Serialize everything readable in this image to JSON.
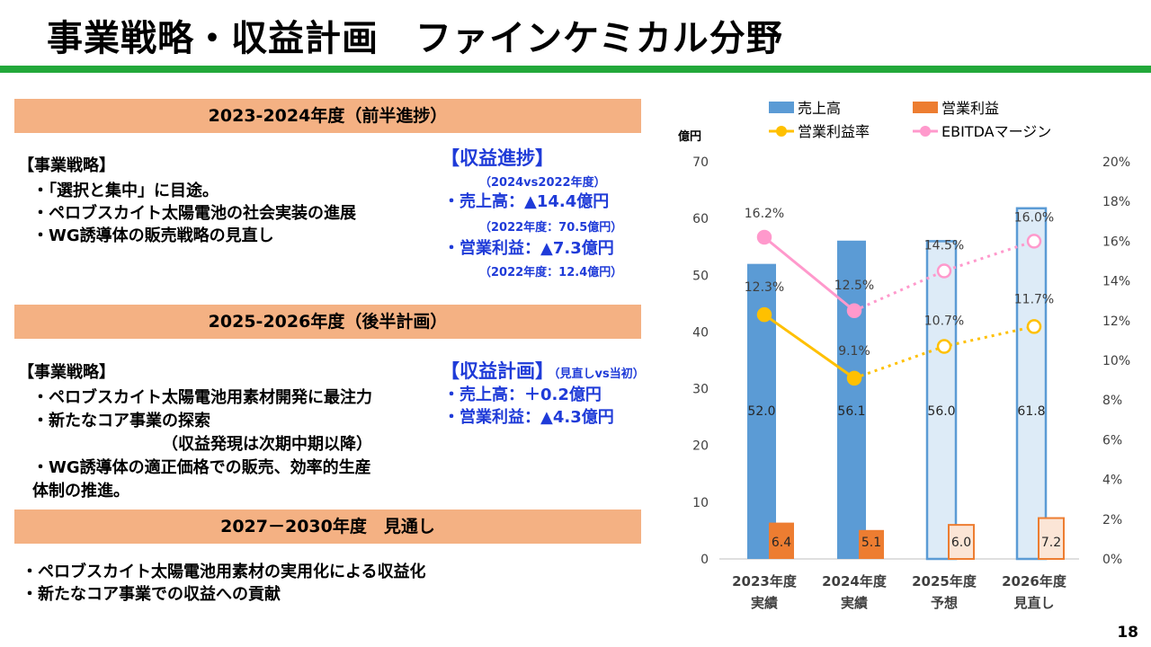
{
  "title": "事業戦略・収益計画　ファインケミカル分野",
  "page_number": "18",
  "sections": [
    {
      "header": "2023-2024年度（前半進捗）",
      "strategy_heading": "【事業戦略】",
      "strategy_items": [
        "・「選択と集中」に目途。",
        "・ペロブスカイト太陽電池の社会実装の進展",
        "・WG誘導体の販売戦略の見直し"
      ],
      "profit_heading": "【収益進捗】",
      "profit_sub": "（2024vs2022年度）",
      "profit_items": [
        "・売上高：▲14.4億円",
        "（2022年度：70.5億円）",
        "・営業利益：▲7.3億円",
        "（2022年度：12.4億円）"
      ]
    },
    {
      "header": "2025-2026年度（後半計画）",
      "strategy_heading": "【事業戦略】",
      "strategy_items": [
        "・ペロブスカイト太陽電池用素材開発に最注力",
        "・新たなコア事業の探索",
        "（収益発現は次期中期以降）",
        "・WG誘導体の適正価格での販売、効率的生産",
        "体制の推進。"
      ],
      "profit_heading": "【収益計画】",
      "profit_heading_suffix": "（見直しvs当初）",
      "profit_items": [
        "・売上高：＋0.2億円",
        "・営業利益：▲4.3億円"
      ]
    },
    {
      "header": "2027－2030年度　見通し",
      "items": [
        "・ペロブスカイト太陽電池用素材の実用化による収益化",
        "・新たなコア事業での収益への貢献"
      ]
    }
  ],
  "chart_data": {
    "type": "bar",
    "categories": [
      [
        "2023年度",
        "実績"
      ],
      [
        "2024年度",
        "実績"
      ],
      [
        "2025年度",
        "予想"
      ],
      [
        "2026年度",
        "見直し"
      ]
    ],
    "y_unit": "億円",
    "ylim": [
      0,
      70
    ],
    "yticks": [
      0,
      10,
      20,
      30,
      40,
      50,
      60,
      70
    ],
    "y2lim": [
      0,
      20
    ],
    "y2ticks": [
      "0%",
      "2%",
      "4%",
      "6%",
      "8%",
      "10%",
      "12%",
      "14%",
      "16%",
      "18%",
      "20%"
    ],
    "bar_series": [
      {
        "name": "売上高",
        "values": [
          52.0,
          56.1,
          56.0,
          61.8
        ],
        "labels": [
          "52.0",
          "56.1",
          "56.0",
          "61.8"
        ],
        "color": "#5b9bd5",
        "plan_fill": "#ddebf7"
      },
      {
        "name": "営業利益",
        "values": [
          6.4,
          5.1,
          6.0,
          7.2
        ],
        "labels": [
          "6.4",
          "5.1",
          "6.0",
          "7.2"
        ],
        "color": "#ed7d31",
        "plan_fill": "#fbe5d6"
      }
    ],
    "line_series": [
      {
        "name": "営業利益率",
        "values": [
          12.3,
          9.1,
          10.7,
          11.7
        ],
        "labels": [
          "12.3%",
          "9.1%",
          "10.7%",
          "11.7%"
        ],
        "color": "#ffc000"
      },
      {
        "name": "EBITDAマージン",
        "values": [
          16.2,
          12.5,
          14.5,
          16.0
        ],
        "labels": [
          "16.2%",
          "12.5%",
          "14.5%",
          "16.0%"
        ],
        "color": "#ff99cc"
      }
    ],
    "actual_count": 2,
    "legend_position": "top"
  }
}
